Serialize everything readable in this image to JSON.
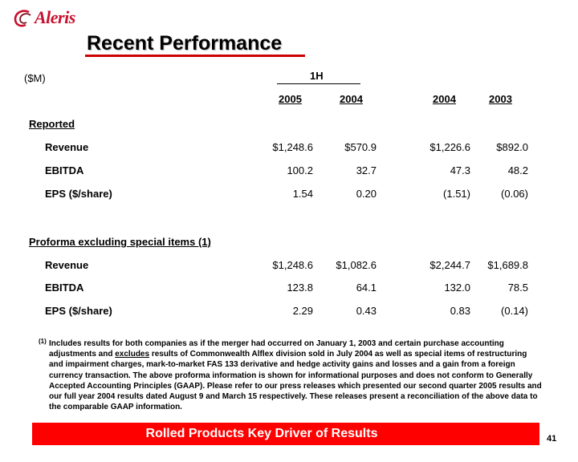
{
  "brand": {
    "name": "Aleris",
    "accent_color": "#c8102e",
    "logo_mark_icon": "aleris-swirl-logo"
  },
  "page_title": "Recent Performance",
  "units_label": "($M)",
  "group_header": "1H",
  "columns": [
    "2005",
    "2004",
    "2004",
    "2003"
  ],
  "sections": [
    {
      "title": "Reported",
      "rows": [
        {
          "label": "Revenue",
          "values": [
            "$1,248.6",
            "$570.9",
            "$1,226.6",
            "$892.0"
          ]
        },
        {
          "label": "EBITDA",
          "values": [
            "100.2",
            "32.7",
            "47.3",
            "48.2"
          ]
        },
        {
          "label": "EPS ($/share)",
          "values": [
            "1.54",
            "0.20",
            "(1.51)",
            "(0.06)"
          ]
        }
      ]
    },
    {
      "title": "Proforma excluding special items (1)",
      "rows": [
        {
          "label": "Revenue",
          "values": [
            "$1,248.6",
            "$1,082.6",
            "$2,244.7",
            "$1,689.8"
          ]
        },
        {
          "label": "EBITDA",
          "values": [
            "123.8",
            "64.1",
            "132.0",
            "78.5"
          ]
        },
        {
          "label": "EPS ($/share)",
          "values": [
            "2.29",
            "0.43",
            "0.83",
            "(0.14)"
          ]
        }
      ]
    }
  ],
  "footnote": {
    "marker": "(1)",
    "text_before": "Includes results for both companies as if the merger had occurred on January 1, 2003 and certain purchase accounting adjustments and ",
    "underlined": "excludes",
    "text_after": " results of Commonwealth Alflex division sold in July 2004 as well as special items of restructuring and impairment charges, mark-to-market FAS 133 derivative and hedge activity gains and losses and a gain from a foreign currency transaction.  The above proforma information is shown for informational purposes and does not conform to Generally Accepted Accounting Principles (GAAP).  Please refer to our press releases which presented our second quarter 2005 results and our full year 2004 results dated August 9 and March 15 respectively.  These releases present a reconciliation of the above data to the comparable GAAP information."
  },
  "banner": {
    "text": "Rolled Products Key Driver of Results",
    "color": "#ff0000"
  },
  "page_number": "41"
}
